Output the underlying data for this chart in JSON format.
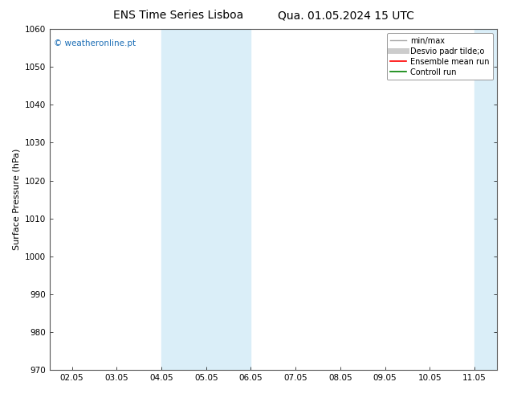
{
  "title_left": "ENS Time Series Lisboa",
  "title_right": "Qua. 01.05.2024 15 UTC",
  "ylabel": "Surface Pressure (hPa)",
  "ylim": [
    970,
    1060
  ],
  "yticks": [
    970,
    980,
    990,
    1000,
    1010,
    1020,
    1030,
    1040,
    1050,
    1060
  ],
  "xtick_labels": [
    "02.05",
    "03.05",
    "04.05",
    "05.05",
    "06.05",
    "07.05",
    "08.05",
    "09.05",
    "10.05",
    "11.05"
  ],
  "shaded_bands": [
    {
      "xstart": 2,
      "xend": 4
    },
    {
      "xstart": 9,
      "xend": 10
    }
  ],
  "shaded_color": "#daeef8",
  "copyright_text": "© weatheronline.pt",
  "copyright_color": "#1a6db5",
  "legend_entries": [
    {
      "label": "min/max",
      "color": "#aaaaaa",
      "lw": 1.0
    },
    {
      "label": "Desvio padr tilde;o",
      "color": "#cccccc",
      "lw": 5
    },
    {
      "label": "Ensemble mean run",
      "color": "red",
      "lw": 1.2
    },
    {
      "label": "Controll run",
      "color": "green",
      "lw": 1.2
    }
  ],
  "background_color": "#ffffff",
  "title_fontsize": 10,
  "tick_fontsize": 7.5,
  "ylabel_fontsize": 8,
  "legend_fontsize": 7
}
